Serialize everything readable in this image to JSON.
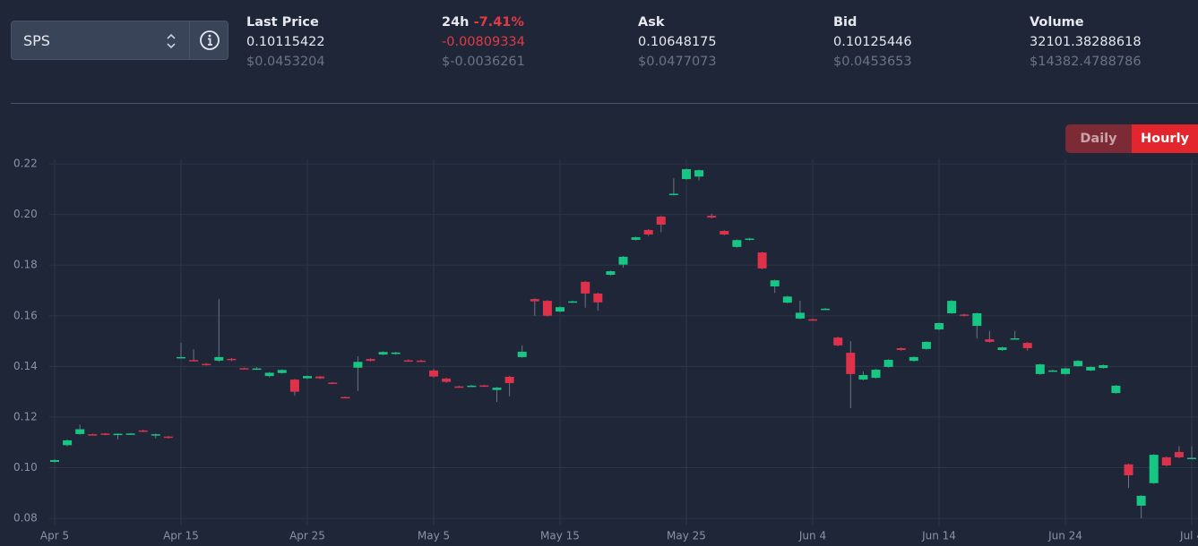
{
  "header": {
    "selector": "SPS",
    "stats": [
      {
        "label": "Last Price",
        "value": "0.10115422",
        "usd": "$0.0453204"
      },
      {
        "label": "24h",
        "change": "-7.41%",
        "value": "-0.00809334",
        "usd": "$-0.0036261"
      },
      {
        "label": "Ask",
        "value": "0.10648175",
        "usd": "$0.0477073"
      },
      {
        "label": "Bid",
        "value": "0.10125446",
        "usd": "$0.0453653"
      },
      {
        "label": "Volume",
        "value": "32101.38288618",
        "usd": "$14382.4788786"
      }
    ]
  },
  "toggle": [
    "Daily",
    "Hourly"
  ],
  "chart_data": {
    "type": "candlestick",
    "x": [
      "Apr 5",
      "Apr 6",
      "Apr 7",
      "Apr 8",
      "Apr 9",
      "Apr 10",
      "Apr 11",
      "Apr 12",
      "Apr 13",
      "Apr 14",
      "Apr 15",
      "Apr 16",
      "Apr 17",
      "Apr 18",
      "Apr 19",
      "Apr 20",
      "Apr 21",
      "Apr 22",
      "Apr 23",
      "Apr 24",
      "Apr 25",
      "Apr 26",
      "Apr 27",
      "Apr 28",
      "Apr 29",
      "Apr 30",
      "May 1",
      "May 2",
      "May 3",
      "May 4",
      "May 5",
      "May 6",
      "May 7",
      "May 8",
      "May 9",
      "May 10",
      "May 11",
      "May 12",
      "May 13",
      "May 14",
      "May 15",
      "May 16",
      "May 17",
      "May 18",
      "May 19",
      "May 20",
      "May 21",
      "May 22",
      "May 23",
      "May 24",
      "May 25",
      "May 26",
      "May 27",
      "May 28",
      "May 29",
      "May 30",
      "May 31",
      "Jun 1",
      "Jun 2",
      "Jun 3",
      "Jun 4",
      "Jun 5",
      "Jun 6",
      "Jun 7",
      "Jun 8",
      "Jun 9",
      "Jun 10",
      "Jun 11",
      "Jun 12",
      "Jun 13",
      "Jun 14",
      "Jun 15",
      "Jun 16",
      "Jun 17",
      "Jun 18",
      "Jun 19",
      "Jun 20",
      "Jun 21",
      "Jun 22",
      "Jun 23",
      "Jun 24",
      "Jun 25",
      "Jun 26",
      "Jun 27",
      "Jun 28",
      "Jun 29",
      "Jun 30",
      "Jul 1",
      "Jul 2",
      "Jul 3",
      "Jul 4"
    ],
    "open": [
      0.1023,
      0.1089,
      0.1133,
      0.1132,
      0.1135,
      0.113,
      0.1134,
      0.1147,
      0.1128,
      0.1123,
      0.1435,
      0.1425,
      0.141,
      0.1423,
      0.143,
      0.1393,
      0.139,
      0.1362,
      0.1374,
      0.1348,
      0.1353,
      0.136,
      0.1336,
      0.1279,
      0.1395,
      0.1429,
      0.1447,
      0.1449,
      0.1424,
      0.1423,
      0.1384,
      0.1352,
      0.1321,
      0.1323,
      0.1325,
      0.1307,
      0.1359,
      0.1437,
      0.1666,
      0.1659,
      0.1617,
      0.1653,
      0.1734,
      0.1688,
      0.1762,
      0.1802,
      0.19,
      0.1939,
      0.1992,
      0.2078,
      0.214,
      0.215,
      0.1995,
      0.1935,
      0.1872,
      0.19,
      0.185,
      0.1716,
      0.1652,
      0.1589,
      0.1586,
      0.1626,
      0.1514,
      0.1454,
      0.1348,
      0.1355,
      0.1398,
      0.1472,
      0.1422,
      0.1469,
      0.1546,
      0.161,
      0.1605,
      0.156,
      0.1507,
      0.1465,
      0.151,
      0.1493,
      0.137,
      0.1383,
      0.137,
      0.1401,
      0.1384,
      0.1394,
      0.1295,
      0.1013,
      0.085,
      0.0939,
      0.1041,
      0.1062,
      0.1037
    ],
    "high": [
      0.1033,
      0.1112,
      0.117,
      0.1134,
      0.1137,
      0.1136,
      0.1137,
      0.115,
      0.1135,
      0.1125,
      0.1493,
      0.1468,
      0.1414,
      0.1666,
      0.1433,
      0.1395,
      0.1397,
      0.1378,
      0.1389,
      0.135,
      0.1364,
      0.1362,
      0.1338,
      0.1281,
      0.144,
      0.1432,
      0.146,
      0.1458,
      0.1428,
      0.1426,
      0.139,
      0.1355,
      0.1324,
      0.1327,
      0.1327,
      0.1319,
      0.1362,
      0.1483,
      0.1669,
      0.1662,
      0.1637,
      0.166,
      0.1737,
      0.1691,
      0.1779,
      0.1836,
      0.1913,
      0.1942,
      0.1995,
      0.2143,
      0.2182,
      0.2178,
      0.2003,
      0.1938,
      0.1902,
      0.1908,
      0.1853,
      0.1743,
      0.1679,
      0.166,
      0.1589,
      0.1631,
      0.1517,
      0.15,
      0.138,
      0.139,
      0.1429,
      0.1475,
      0.144,
      0.15,
      0.1574,
      0.1662,
      0.1608,
      0.1613,
      0.154,
      0.1478,
      0.154,
      0.1496,
      0.1411,
      0.1387,
      0.1395,
      0.1425,
      0.1401,
      0.1408,
      0.1327,
      0.1016,
      0.0892,
      0.1054,
      0.1044,
      0.1085,
      0.1085
    ],
    "low": [
      0.102,
      0.1085,
      0.113,
      0.1128,
      0.1128,
      0.1112,
      0.1132,
      0.114,
      0.1115,
      0.1115,
      0.1433,
      0.142,
      0.1403,
      0.1418,
      0.1421,
      0.1389,
      0.1388,
      0.1357,
      0.1371,
      0.1285,
      0.135,
      0.135,
      0.1333,
      0.1276,
      0.1303,
      0.142,
      0.1444,
      0.1446,
      0.142,
      0.142,
      0.1356,
      0.1335,
      0.1318,
      0.1321,
      0.1321,
      0.126,
      0.1282,
      0.1434,
      0.16,
      0.1597,
      0.1614,
      0.165,
      0.1632,
      0.162,
      0.1759,
      0.179,
      0.1897,
      0.1915,
      0.193,
      0.2075,
      0.2137,
      0.2135,
      0.1985,
      0.1918,
      0.1869,
      0.1897,
      0.1784,
      0.169,
      0.1649,
      0.1586,
      0.1581,
      0.1624,
      0.148,
      0.1235,
      0.1345,
      0.1352,
      0.1395,
      0.1462,
      0.1419,
      0.1466,
      0.1543,
      0.1607,
      0.1597,
      0.151,
      0.1494,
      0.1462,
      0.1508,
      0.1462,
      0.1367,
      0.138,
      0.1367,
      0.1398,
      0.1381,
      0.1391,
      0.1292,
      0.092,
      0.08,
      0.0936,
      0.1006,
      0.1038,
      0.1035
    ],
    "close": [
      0.103,
      0.1108,
      0.1152,
      0.113,
      0.113,
      0.1134,
      0.1135,
      0.1143,
      0.1132,
      0.112,
      0.1437,
      0.1423,
      0.1407,
      0.1437,
      0.1425,
      0.1391,
      0.1392,
      0.1375,
      0.1386,
      0.13,
      0.1362,
      0.1353,
      0.1335,
      0.1278,
      0.1418,
      0.1422,
      0.1457,
      0.1455,
      0.1422,
      0.1422,
      0.136,
      0.1339,
      0.132,
      0.1324,
      0.1324,
      0.1316,
      0.1334,
      0.1458,
      0.1657,
      0.16,
      0.1634,
      0.1657,
      0.1688,
      0.1653,
      0.1776,
      0.1833,
      0.191,
      0.1921,
      0.196,
      0.2082,
      0.2179,
      0.2175,
      0.1988,
      0.1921,
      0.1899,
      0.1905,
      0.1787,
      0.174,
      0.1676,
      0.1612,
      0.1585,
      0.1628,
      0.1483,
      0.137,
      0.1366,
      0.1387,
      0.1426,
      0.1465,
      0.1437,
      0.1497,
      0.1571,
      0.1659,
      0.16,
      0.161,
      0.1497,
      0.1475,
      0.1511,
      0.1472,
      0.1408,
      0.1384,
      0.1392,
      0.1422,
      0.1398,
      0.1405,
      0.1324,
      0.097,
      0.0889,
      0.1051,
      0.1009,
      0.1041,
      0.1039
    ],
    "up_color": "#16c784",
    "down_color": "#e0314b",
    "ylim": [
      0.0772,
      0.2218
    ],
    "yticks": [
      0.08,
      {
        "value": 0.1,
        "label": "0.10"
      },
      0.12,
      0.14,
      0.16,
      0.18,
      {
        "value": 0.2,
        "label": "0.20"
      },
      0.22
    ],
    "xticks": [
      "Apr 5",
      "Apr 15",
      "Apr 25",
      "May 5",
      "May 15",
      "May 25",
      "Jun 4",
      "Jun 14",
      "Jun 24",
      "Jul 4"
    ],
    "grid": true
  }
}
